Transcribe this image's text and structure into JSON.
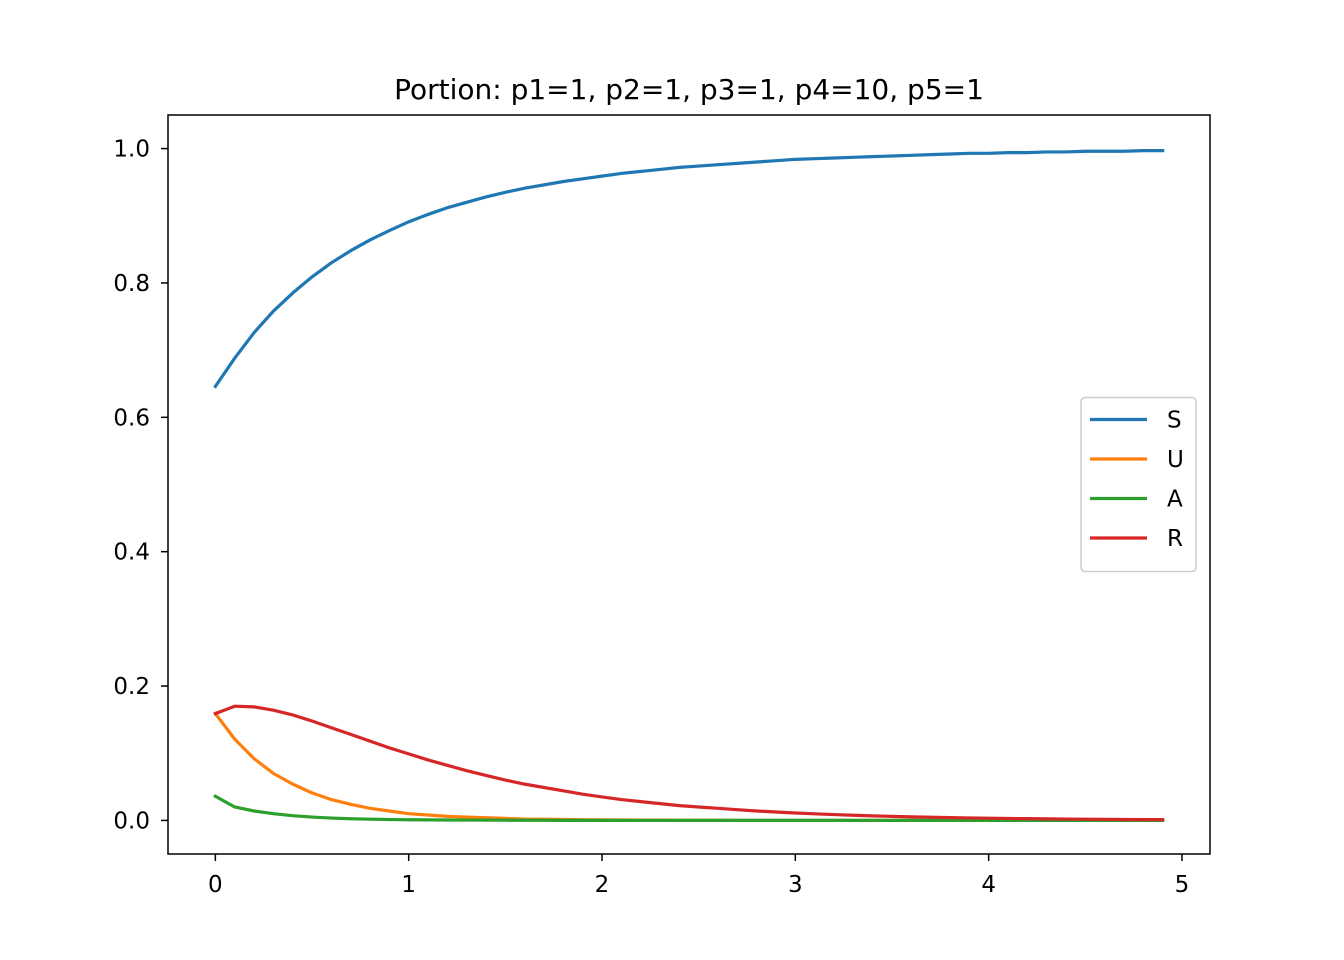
{
  "chart_data": {
    "type": "line",
    "title": "Portion: p1=1, p2=1, p3=1, p4=10, p5=1",
    "xlabel": "",
    "ylabel": "",
    "xlim": [
      -0.245,
      5.145
    ],
    "ylim": [
      -0.05,
      1.05
    ],
    "xticks": [
      0,
      1,
      2,
      3,
      4,
      5
    ],
    "xtick_labels": [
      "0",
      "1",
      "2",
      "3",
      "4",
      "5"
    ],
    "yticks": [
      0.0,
      0.2,
      0.4,
      0.6,
      0.8,
      1.0
    ],
    "ytick_labels": [
      "0.0",
      "0.2",
      "0.4",
      "0.6",
      "0.8",
      "1.0"
    ],
    "grid": false,
    "legend_position": "center-right",
    "x": [
      0,
      0.1,
      0.2,
      0.3,
      0.4,
      0.5,
      0.6,
      0.7,
      0.8,
      0.9,
      1.0,
      1.1,
      1.2,
      1.3,
      1.4,
      1.5,
      1.6,
      1.7,
      1.8,
      1.9,
      2.0,
      2.1,
      2.2,
      2.3,
      2.4,
      2.5,
      2.6,
      2.7,
      2.8,
      2.9,
      3.0,
      3.1,
      3.2,
      3.3,
      3.4,
      3.5,
      3.6,
      3.7,
      3.8,
      3.9,
      4.0,
      4.1,
      4.2,
      4.3,
      4.4,
      4.5,
      4.6,
      4.7,
      4.8,
      4.9
    ],
    "series": [
      {
        "name": "S",
        "color": "#1f77b4",
        "values": [
          0.646,
          0.688,
          0.726,
          0.758,
          0.785,
          0.809,
          0.83,
          0.848,
          0.864,
          0.878,
          0.891,
          0.902,
          0.912,
          0.92,
          0.928,
          0.935,
          0.941,
          0.946,
          0.951,
          0.955,
          0.959,
          0.963,
          0.966,
          0.969,
          0.972,
          0.974,
          0.976,
          0.978,
          0.98,
          0.982,
          0.984,
          0.985,
          0.986,
          0.987,
          0.988,
          0.989,
          0.99,
          0.991,
          0.992,
          0.993,
          0.993,
          0.994,
          0.994,
          0.995,
          0.995,
          0.996,
          0.996,
          0.996,
          0.997,
          0.997
        ]
      },
      {
        "name": "U",
        "color": "#ff7f0e",
        "values": [
          0.159,
          0.121,
          0.092,
          0.07,
          0.054,
          0.041,
          0.031,
          0.024,
          0.018,
          0.014,
          0.01,
          0.008,
          0.006,
          0.005,
          0.004,
          0.003,
          0.002,
          0.0018,
          0.0014,
          0.001,
          0.0008,
          0.0006,
          0.0005,
          0.0004,
          0.0003,
          0.0002,
          0.0002,
          0.0001,
          0.0001,
          0.0001,
          0.0001,
          0.0,
          0.0,
          0.0,
          0.0,
          0.0,
          0.0,
          0.0,
          0.0,
          0.0,
          0.0,
          0.0,
          0.0,
          0.0,
          0.0,
          0.0,
          0.0,
          0.0,
          0.0,
          0.0
        ]
      },
      {
        "name": "A",
        "color": "#2ca02c",
        "values": [
          0.036,
          0.02,
          0.014,
          0.01,
          0.007,
          0.005,
          0.0035,
          0.0025,
          0.0018,
          0.0013,
          0.001,
          0.0008,
          0.0006,
          0.0005,
          0.0004,
          0.0003,
          0.0002,
          0.0002,
          0.0001,
          0.0001,
          0.0001,
          0.0,
          0.0,
          0.0,
          0.0,
          0.0,
          0.0,
          0.0,
          0.0,
          0.0,
          0.0,
          0.0,
          0.0,
          0.0,
          0.0,
          0.0,
          0.0,
          0.0,
          0.0,
          0.0,
          0.0,
          0.0,
          0.0,
          0.0,
          0.0,
          0.0,
          0.0,
          0.0,
          0.0,
          0.0
        ]
      },
      {
        "name": "R",
        "color": "#d62728",
        "values": [
          0.159,
          0.17,
          0.169,
          0.164,
          0.157,
          0.148,
          0.138,
          0.128,
          0.118,
          0.108,
          0.099,
          0.09,
          0.082,
          0.074,
          0.067,
          0.06,
          0.054,
          0.049,
          0.044,
          0.039,
          0.035,
          0.031,
          0.028,
          0.025,
          0.022,
          0.02,
          0.018,
          0.016,
          0.014,
          0.0125,
          0.011,
          0.0098,
          0.0087,
          0.0077,
          0.0068,
          0.006,
          0.0053,
          0.0047,
          0.0042,
          0.0037,
          0.0033,
          0.0029,
          0.0026,
          0.0023,
          0.002,
          0.0018,
          0.0016,
          0.0014,
          0.0013,
          0.0012
        ]
      }
    ]
  }
}
